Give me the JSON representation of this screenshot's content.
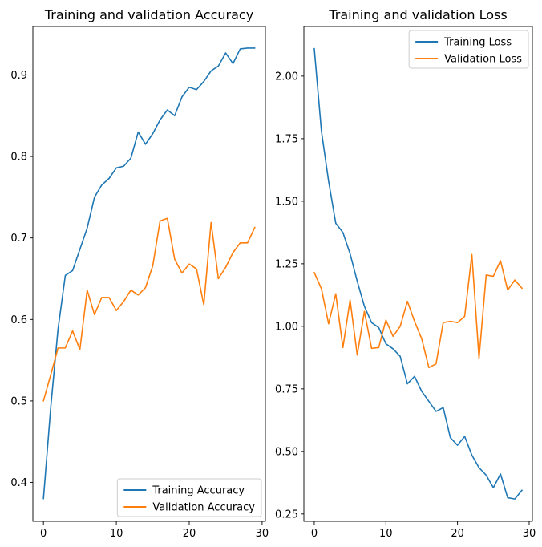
{
  "chart_data": [
    {
      "type": "line",
      "title": "Training and validation Accuracy",
      "xlabel": "",
      "ylabel": "",
      "xlim": [
        -1.45,
        30.45
      ],
      "ylim": [
        0.3523,
        0.9595
      ],
      "xticks": [
        0,
        10,
        20,
        30
      ],
      "xtick_labels": [
        "0",
        "10",
        "20",
        "30"
      ],
      "yticks": [
        0.4,
        0.5,
        0.6,
        0.7,
        0.8,
        0.9
      ],
      "ytick_labels": [
        "0.4",
        "0.5",
        "0.6",
        "0.7",
        "0.8",
        "0.9"
      ],
      "grid": false,
      "legend_position": "lower right",
      "x": [
        0,
        1,
        2,
        3,
        4,
        5,
        6,
        7,
        8,
        9,
        10,
        11,
        12,
        13,
        14,
        15,
        16,
        17,
        18,
        19,
        20,
        21,
        22,
        23,
        24,
        25,
        26,
        27,
        28,
        29
      ],
      "series": [
        {
          "name": "Training Accuracy",
          "color": "#1f77b4",
          "values": [
            0.38,
            0.492,
            0.588,
            0.654,
            0.66,
            0.686,
            0.712,
            0.75,
            0.765,
            0.773,
            0.786,
            0.788,
            0.798,
            0.83,
            0.815,
            0.828,
            0.845,
            0.857,
            0.85,
            0.873,
            0.885,
            0.882,
            0.892,
            0.905,
            0.911,
            0.927,
            0.914,
            0.932,
            0.933,
            0.933
          ]
        },
        {
          "name": "Validation Accuracy",
          "color": "#ff7f0e",
          "values": [
            0.5,
            0.532,
            0.565,
            0.565,
            0.586,
            0.563,
            0.636,
            0.606,
            0.627,
            0.627,
            0.611,
            0.622,
            0.636,
            0.63,
            0.639,
            0.666,
            0.721,
            0.724,
            0.674,
            0.657,
            0.668,
            0.662,
            0.618,
            0.719,
            0.65,
            0.664,
            0.682,
            0.694,
            0.694,
            0.713
          ]
        }
      ]
    },
    {
      "type": "line",
      "title": "Training and validation Loss",
      "xlabel": "",
      "ylabel": "",
      "xlim": [
        -1.45,
        30.45
      ],
      "ylim": [
        0.2206,
        2.1984
      ],
      "xticks": [
        0,
        10,
        20,
        30
      ],
      "xtick_labels": [
        "0",
        "10",
        "20",
        "30"
      ],
      "yticks": [
        0.25,
        0.5,
        0.75,
        1.0,
        1.25,
        1.5,
        1.75,
        2.0
      ],
      "ytick_labels": [
        "0.25",
        "0.50",
        "0.75",
        "1.00",
        "1.25",
        "1.50",
        "1.75",
        "2.00"
      ],
      "grid": false,
      "legend_position": "upper right",
      "x": [
        0,
        1,
        2,
        3,
        4,
        5,
        6,
        7,
        8,
        9,
        10,
        11,
        12,
        13,
        14,
        15,
        16,
        17,
        18,
        19,
        20,
        21,
        22,
        23,
        24,
        25,
        26,
        27,
        28,
        29
      ],
      "series": [
        {
          "name": "Training Loss",
          "color": "#1f77b4",
          "values": [
            2.11,
            1.78,
            1.58,
            1.412,
            1.375,
            1.29,
            1.18,
            1.08,
            1.015,
            0.995,
            0.93,
            0.91,
            0.88,
            0.77,
            0.8,
            0.74,
            0.7,
            0.66,
            0.675,
            0.555,
            0.525,
            0.56,
            0.485,
            0.435,
            0.405,
            0.355,
            0.41,
            0.315,
            0.31,
            0.345
          ]
        },
        {
          "name": "Validation Loss",
          "color": "#ff7f0e",
          "values": [
            1.215,
            1.15,
            1.01,
            1.13,
            0.915,
            1.105,
            0.885,
            1.06,
            0.912,
            0.915,
            1.025,
            0.96,
            1.0,
            1.1,
            1.02,
            0.95,
            0.835,
            0.85,
            1.015,
            1.02,
            1.015,
            1.04,
            1.287,
            0.872,
            1.205,
            1.2,
            1.262,
            1.145,
            1.185,
            1.152
          ]
        }
      ]
    }
  ]
}
